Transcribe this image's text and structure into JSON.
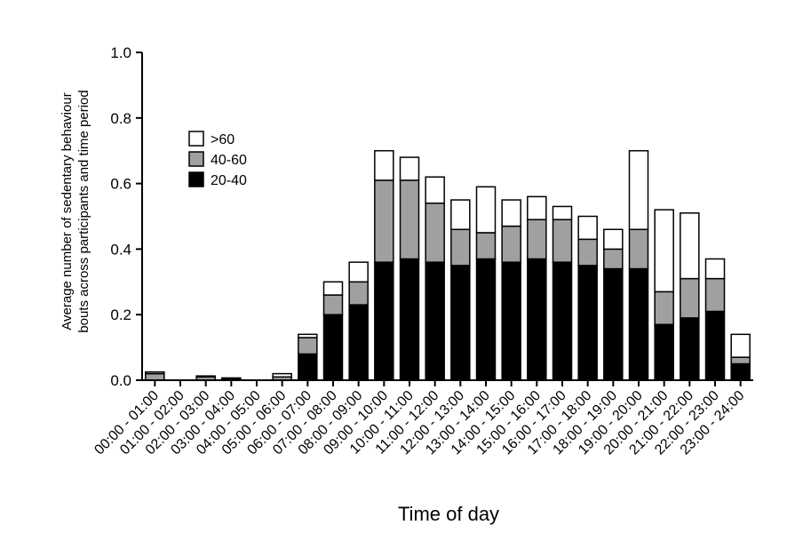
{
  "chart_data": {
    "type": "bar",
    "stacked": true,
    "title": "",
    "xlabel": "Time of day",
    "ylabel_lines": [
      "Average number of sedentary behaviour",
      "bouts across participants and time period"
    ],
    "ylim": [
      0,
      1.0
    ],
    "yticks": [
      "0.0",
      "0.2",
      "0.4",
      "0.6",
      "0.8",
      "1.0"
    ],
    "grid": false,
    "legend_position": "top-left",
    "categories": [
      "00:00 - 01:00",
      "01:00 - 02:00",
      "02:00 - 03:00",
      "03:00 - 04:00",
      "04:00 - 05:00",
      "05:00 - 06:00",
      "06:00 - 07:00",
      "07:00 - 08:00",
      "08:00 - 09:00",
      "09:00 - 10:00",
      "10:00 - 11:00",
      "11:00 - 12:00",
      "12:00 - 13:00",
      "13:00 - 14:00",
      "14:00 - 15:00",
      "15:00 - 16:00",
      "16:00 - 17:00",
      "17:00 - 18:00",
      "18:00 - 19:00",
      "19:00 - 20:00",
      "20:00 - 21:00",
      "21:00 - 22:00",
      "22:00 - 23:00",
      "23:00 - 24:00"
    ],
    "series": [
      {
        "name": "20-40",
        "color": "#000000",
        "values": [
          0.0,
          0.0,
          0.0,
          0.0,
          0.0,
          0.0,
          0.08,
          0.2,
          0.23,
          0.36,
          0.37,
          0.36,
          0.35,
          0.37,
          0.36,
          0.37,
          0.36,
          0.35,
          0.34,
          0.34,
          0.17,
          0.19,
          0.21,
          0.05
        ]
      },
      {
        "name": "40-60",
        "color": "#a0a0a0",
        "values": [
          0.02,
          0.0,
          0.01,
          0.005,
          0.0,
          0.01,
          0.05,
          0.06,
          0.07,
          0.25,
          0.24,
          0.18,
          0.11,
          0.08,
          0.11,
          0.12,
          0.13,
          0.08,
          0.06,
          0.12,
          0.1,
          0.12,
          0.1,
          0.02
        ]
      },
      {
        "name": ">60",
        "color": "#ffffff",
        "values": [
          0.005,
          0.0,
          0.003,
          0.002,
          0.0,
          0.01,
          0.01,
          0.04,
          0.06,
          0.09,
          0.07,
          0.08,
          0.09,
          0.14,
          0.08,
          0.07,
          0.04,
          0.07,
          0.06,
          0.24,
          0.25,
          0.2,
          0.06,
          0.07
        ]
      }
    ],
    "legend_order": [
      ">60",
      "40-60",
      "20-40"
    ]
  }
}
